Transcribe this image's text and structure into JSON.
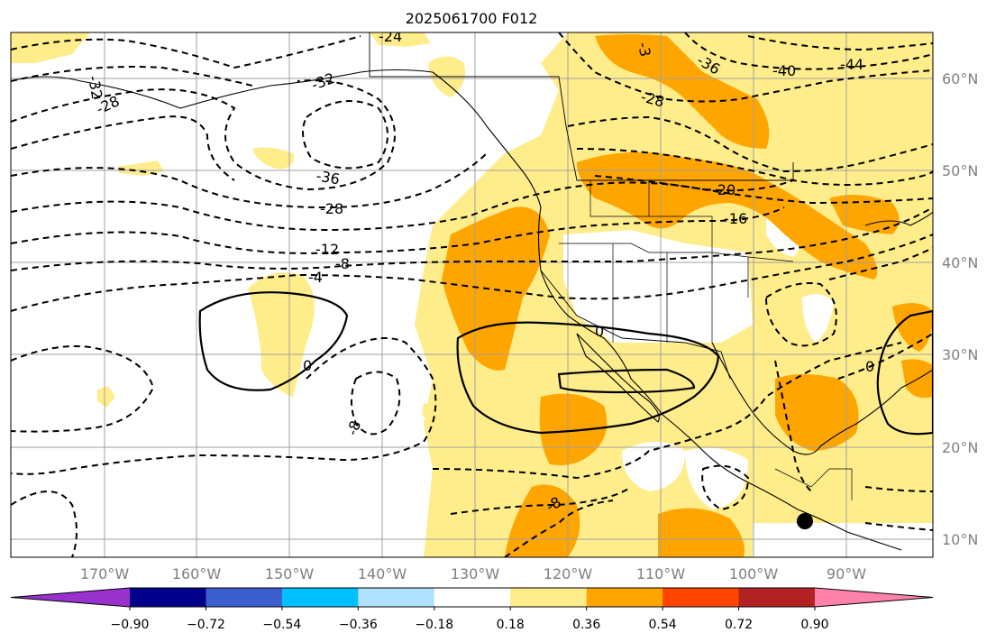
{
  "title": "2025061700 F012",
  "lat_labels": [
    "60°N",
    "50°N",
    "40°N",
    "30°N",
    "20°N",
    "10°N"
  ],
  "lon_labels": [
    "170°W",
    "160°W",
    "150°W",
    "140°W",
    "130°W",
    "120°W",
    "110°W",
    "100°W",
    "90°W"
  ],
  "colorbar": {
    "labels": [
      "−0.90",
      "−0.72",
      "−0.54",
      "−0.36",
      "−0.18",
      "0.18",
      "0.36",
      "0.54",
      "0.72",
      "0.90"
    ],
    "colors": [
      "#9932cc",
      "#00008b",
      "#3a5fcd",
      "#00bfff",
      "#b0e2ff",
      "#ffffff",
      "#ffec8b",
      "#ffa500",
      "#ff4500",
      "#b22222",
      "#ff82ab"
    ]
  },
  "shading_colors": {
    "light": "#ffec8b",
    "medium": "#ffa500"
  },
  "contour_labels": [
    {
      "id": "c-32a",
      "text": "-32"
    },
    {
      "id": "c-28a",
      "text": "-28"
    },
    {
      "id": "c-32b",
      "text": "-32"
    },
    {
      "id": "c-36a",
      "text": "-36"
    },
    {
      "id": "c-28b",
      "text": "-28"
    },
    {
      "id": "c-12",
      "text": "-12"
    },
    {
      "id": "c-8a",
      "text": "-8"
    },
    {
      "id": "c-4",
      "text": "-4"
    },
    {
      "id": "c-0a",
      "text": "0"
    },
    {
      "id": "c-0b",
      "text": "0"
    },
    {
      "id": "c-8b",
      "text": "-8"
    },
    {
      "id": "c-8c",
      "text": "-8"
    },
    {
      "id": "c-36b",
      "text": "-36"
    },
    {
      "id": "c-40",
      "text": "-40"
    },
    {
      "id": "c-44",
      "text": "-44"
    },
    {
      "id": "c-28c",
      "text": "-28"
    },
    {
      "id": "c-20",
      "text": "-20"
    },
    {
      "id": "c-16",
      "text": "-16"
    },
    {
      "id": "c-0c",
      "text": "0"
    },
    {
      "id": "c-3",
      "text": "-3"
    },
    {
      "id": "c-24",
      "text": "-24"
    }
  ]
}
